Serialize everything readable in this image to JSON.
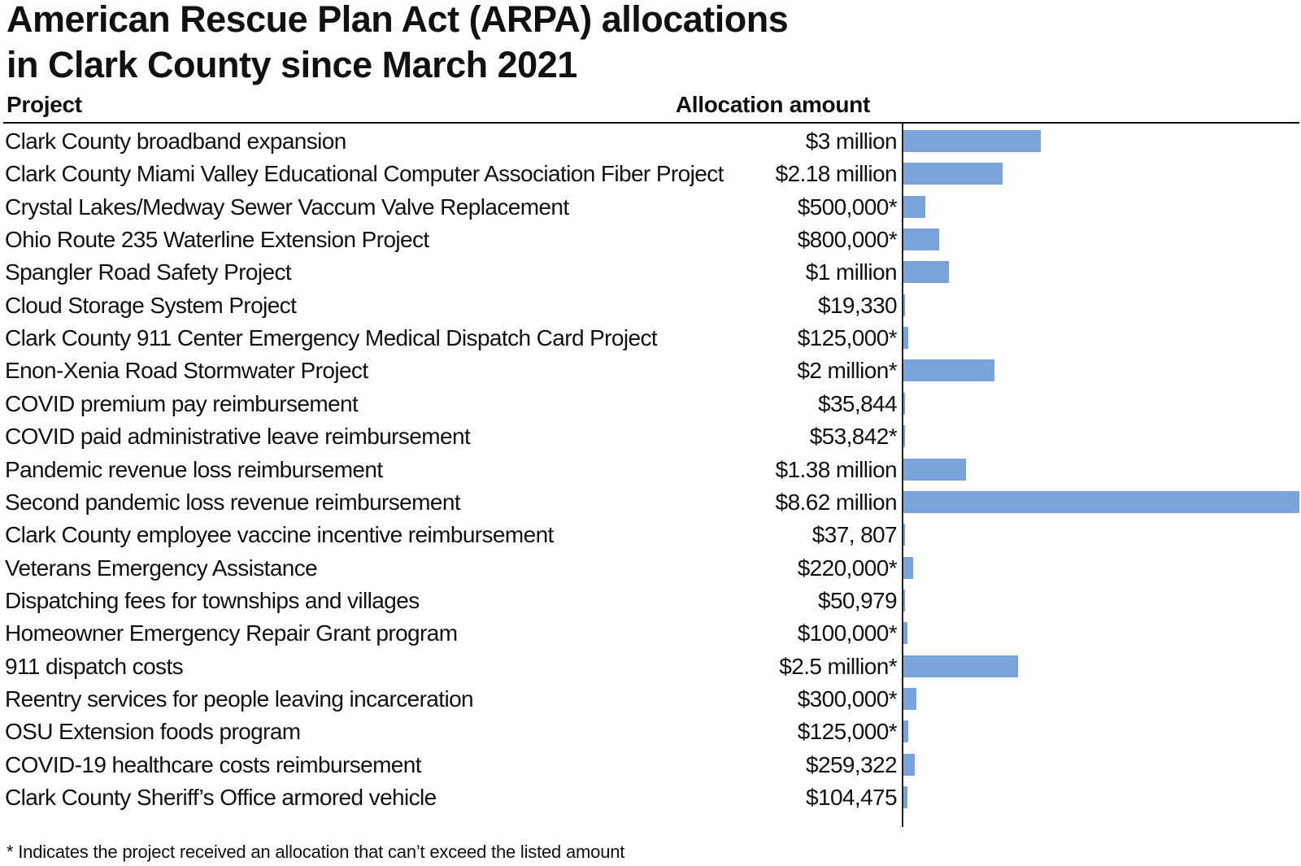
{
  "chart_data": {
    "type": "bar",
    "orientation": "horizontal",
    "title_lines": [
      "American Rescue Plan Act (ARPA) allocations",
      "in Clark County since March 2021"
    ],
    "column_headers": {
      "project": "Project",
      "amount": "Allocation amount"
    },
    "bar_color": "#7aa3db",
    "categories": [
      "Clark County broadband expansion",
      "Clark County Miami Valley Educational Computer Association Fiber Project",
      "Crystal Lakes/Medway Sewer Vaccum Valve Replacement",
      "Ohio Route 235 Waterline Extension Project",
      "Spangler Road Safety Project",
      "Cloud Storage System Project",
      "Clark County 911 Center Emergency Medical Dispatch Card Project",
      "Enon-Xenia Road Stormwater Project",
      "COVID premium pay reimbursement",
      "COVID paid administrative leave reimbursement",
      "Pandemic revenue loss reimbursement",
      "Second pandemic loss revenue reimbursement",
      "Clark County employee vaccine incentive reimbursement",
      "Veterans Emergency Assistance",
      "Dispatching fees for townships and villages",
      "Homeowner Emergency Repair Grant program",
      "911 dispatch costs",
      "Reentry services for people leaving incarceration",
      "OSU Extension foods program",
      "COVID-19 healthcare costs reimbursement",
      "Clark County Sheriff’s Office armored vehicle"
    ],
    "value_labels": [
      "$3 million",
      "$2.18 million",
      "$500,000*",
      "$800,000*",
      "$1 million",
      "$19,330",
      "$125,000*",
      "$2 million*",
      "$35,844",
      "$53,842*",
      "$1.38 million",
      "$8.62 million",
      "$37, 807",
      "$220,000*",
      "$50,979",
      "$100,000*",
      "$2.5 million*",
      "$300,000*",
      "$125,000*",
      "$259,322",
      "$104,475"
    ],
    "values": [
      3000000,
      2180000,
      500000,
      800000,
      1000000,
      19330,
      125000,
      2000000,
      35844,
      53842,
      1380000,
      8620000,
      37807,
      220000,
      50979,
      100000,
      2500000,
      300000,
      125000,
      259322,
      104475
    ],
    "xlim": [
      0,
      8620000
    ],
    "footnote": "* Indicates the project received an allocation that can’t exceed the listed amount"
  }
}
